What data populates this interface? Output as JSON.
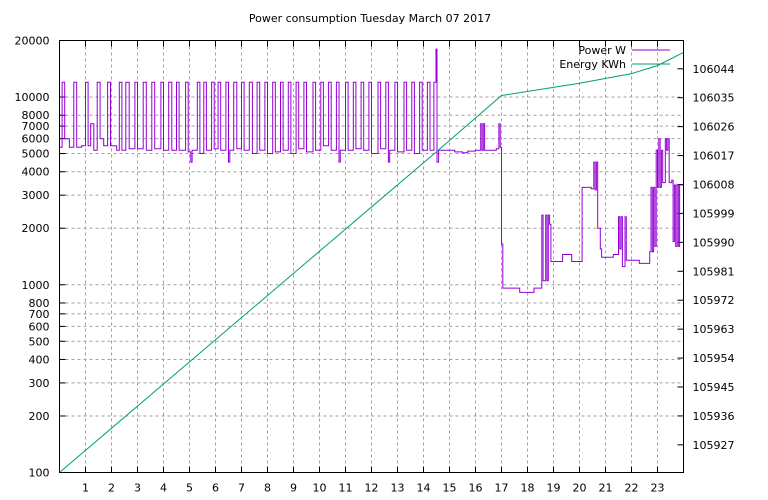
{
  "chart_data": {
    "type": "line",
    "title": "Power consumption Tuesday March 07 2017",
    "xlabel": "",
    "ylabel": "",
    "xlim": [
      0,
      24
    ],
    "x_ticks": [
      1,
      2,
      3,
      4,
      5,
      6,
      7,
      8,
      9,
      10,
      11,
      12,
      13,
      14,
      15,
      16,
      17,
      18,
      19,
      20,
      21,
      22,
      23
    ],
    "y_left": {
      "scale": "log",
      "lim": [
        100,
        20000
      ],
      "ticks": [
        100,
        200,
        300,
        400,
        500,
        600,
        700,
        800,
        1000,
        2000,
        3000,
        4000,
        5000,
        6000,
        7000,
        8000,
        10000,
        20000
      ]
    },
    "y_right": {
      "scale": "linear",
      "lim": [
        105918.4,
        106052.8
      ],
      "ticks": [
        105927,
        105936,
        105945,
        105954,
        105963,
        105972,
        105981,
        105990,
        105999,
        106008,
        106017,
        106026,
        106035,
        106044
      ]
    },
    "grid": true,
    "legend": {
      "placement": "top-right",
      "entries": [
        "Power W",
        "Energy KWh"
      ]
    },
    "series": [
      {
        "name": "Power W",
        "axis": "left",
        "color": "#9400d3",
        "step": true,
        "points": [
          [
            0,
            5400
          ],
          [
            0.1,
            12000
          ],
          [
            0.2,
            6000
          ],
          [
            0.38,
            5400
          ],
          [
            0.55,
            12000
          ],
          [
            0.66,
            5400
          ],
          [
            0.85,
            5500
          ],
          [
            1.0,
            12000
          ],
          [
            1.1,
            5500
          ],
          [
            1.2,
            7200
          ],
          [
            1.32,
            5200
          ],
          [
            1.45,
            12000
          ],
          [
            1.56,
            6000
          ],
          [
            1.7,
            5500
          ],
          [
            1.85,
            12000
          ],
          [
            1.96,
            5500
          ],
          [
            2.2,
            5200
          ],
          [
            2.3,
            12000
          ],
          [
            2.4,
            5200
          ],
          [
            2.55,
            12000
          ],
          [
            2.68,
            5300
          ],
          [
            2.9,
            12000
          ],
          [
            3.0,
            5300
          ],
          [
            3.22,
            12000
          ],
          [
            3.34,
            5200
          ],
          [
            3.55,
            12000
          ],
          [
            3.66,
            5300
          ],
          [
            3.9,
            12000
          ],
          [
            4.0,
            5200
          ],
          [
            4.2,
            12000
          ],
          [
            4.32,
            5200
          ],
          [
            4.5,
            12000
          ],
          [
            4.6,
            5200
          ],
          [
            4.85,
            12000
          ],
          [
            4.95,
            5100
          ],
          [
            5.05,
            4500
          ],
          [
            5.1,
            5200
          ],
          [
            5.3,
            12000
          ],
          [
            5.4,
            5000
          ],
          [
            5.55,
            12000
          ],
          [
            5.65,
            5200
          ],
          [
            5.85,
            12000
          ],
          [
            5.95,
            5300
          ],
          [
            6.1,
            12000
          ],
          [
            6.2,
            5200
          ],
          [
            6.4,
            12000
          ],
          [
            6.5,
            4500
          ],
          [
            6.55,
            5200
          ],
          [
            6.7,
            12000
          ],
          [
            6.82,
            5300
          ],
          [
            7.0,
            12000
          ],
          [
            7.1,
            5200
          ],
          [
            7.3,
            12000
          ],
          [
            7.42,
            5000
          ],
          [
            7.6,
            12000
          ],
          [
            7.7,
            5200
          ],
          [
            7.9,
            12000
          ],
          [
            8.0,
            5000
          ],
          [
            8.2,
            12000
          ],
          [
            8.3,
            5100
          ],
          [
            8.5,
            12000
          ],
          [
            8.6,
            5200
          ],
          [
            8.8,
            12000
          ],
          [
            8.9,
            5000
          ],
          [
            9.1,
            12000
          ],
          [
            9.2,
            5300
          ],
          [
            9.4,
            12000
          ],
          [
            9.5,
            5100
          ],
          [
            9.75,
            12000
          ],
          [
            9.85,
            5200
          ],
          [
            10.05,
            12000
          ],
          [
            10.15,
            5500
          ],
          [
            10.35,
            12000
          ],
          [
            10.45,
            5200
          ],
          [
            10.65,
            12000
          ],
          [
            10.75,
            4500
          ],
          [
            10.8,
            5200
          ],
          [
            11.0,
            12000
          ],
          [
            11.1,
            5200
          ],
          [
            11.3,
            12000
          ],
          [
            11.4,
            5300
          ],
          [
            11.6,
            12000
          ],
          [
            11.7,
            5200
          ],
          [
            11.9,
            12000
          ],
          [
            12.0,
            5000
          ],
          [
            12.25,
            12000
          ],
          [
            12.35,
            5300
          ],
          [
            12.55,
            12000
          ],
          [
            12.65,
            4500
          ],
          [
            12.7,
            5200
          ],
          [
            12.9,
            12000
          ],
          [
            13.0,
            5100
          ],
          [
            13.25,
            12000
          ],
          [
            13.35,
            5200
          ],
          [
            13.55,
            12000
          ],
          [
            13.65,
            5000
          ],
          [
            13.85,
            12000
          ],
          [
            13.95,
            5200
          ],
          [
            14.15,
            12000
          ],
          [
            14.25,
            5200
          ],
          [
            14.4,
            12000
          ],
          [
            14.48,
            18000
          ],
          [
            14.52,
            4500
          ],
          [
            14.58,
            5200
          ],
          [
            15.2,
            5100
          ],
          [
            15.5,
            5050
          ],
          [
            15.7,
            5150
          ],
          [
            16.0,
            5200
          ],
          [
            16.2,
            7200
          ],
          [
            16.25,
            5200
          ],
          [
            16.3,
            7200
          ],
          [
            16.35,
            5200
          ],
          [
            16.8,
            5300
          ],
          [
            16.9,
            7200
          ],
          [
            16.95,
            5400
          ],
          [
            17.0,
            1650
          ],
          [
            17.05,
            960
          ],
          [
            17.7,
            910
          ],
          [
            18.25,
            960
          ],
          [
            18.55,
            2350
          ],
          [
            18.6,
            1050
          ],
          [
            18.7,
            2350
          ],
          [
            18.75,
            1050
          ],
          [
            18.8,
            2350
          ],
          [
            18.85,
            2100
          ],
          [
            18.9,
            1330
          ],
          [
            19.35,
            1450
          ],
          [
            19.7,
            1330
          ],
          [
            20.1,
            3300
          ],
          [
            20.45,
            3250
          ],
          [
            20.55,
            4500
          ],
          [
            20.6,
            3200
          ],
          [
            20.65,
            4500
          ],
          [
            20.7,
            2000
          ],
          [
            20.8,
            1550
          ],
          [
            20.85,
            1400
          ],
          [
            21.3,
            1450
          ],
          [
            21.5,
            2300
          ],
          [
            21.55,
            1550
          ],
          [
            21.6,
            2300
          ],
          [
            21.65,
            1250
          ],
          [
            21.75,
            2300
          ],
          [
            21.8,
            1350
          ],
          [
            22.3,
            1300
          ],
          [
            22.7,
            1500
          ],
          [
            22.75,
            3300
          ],
          [
            22.8,
            1500
          ],
          [
            22.85,
            3300
          ],
          [
            22.9,
            1600
          ],
          [
            22.95,
            5200
          ],
          [
            23.0,
            3300
          ],
          [
            23.05,
            6000
          ],
          [
            23.1,
            3300
          ],
          [
            23.15,
            5200
          ],
          [
            23.2,
            3500
          ],
          [
            23.3,
            6000
          ],
          [
            23.35,
            5200
          ],
          [
            23.4,
            6000
          ],
          [
            23.45,
            3500
          ],
          [
            23.55,
            3600
          ],
          [
            23.6,
            1700
          ],
          [
            23.65,
            3400
          ],
          [
            23.7,
            1600
          ],
          [
            23.75,
            3400
          ],
          [
            23.8,
            1600
          ],
          [
            23.85,
            3400
          ],
          [
            24,
            3300
          ]
        ]
      },
      {
        "name": "Energy KWh",
        "axis": "right",
        "color": "#009e73",
        "step": false,
        "points": [
          [
            0,
            105918.4
          ],
          [
            14.5,
            106018.2
          ],
          [
            17,
            106035.7
          ],
          [
            20,
            106039.5
          ],
          [
            22,
            106042.5
          ],
          [
            23,
            106045.0
          ],
          [
            24,
            106049.1
          ]
        ]
      }
    ]
  }
}
